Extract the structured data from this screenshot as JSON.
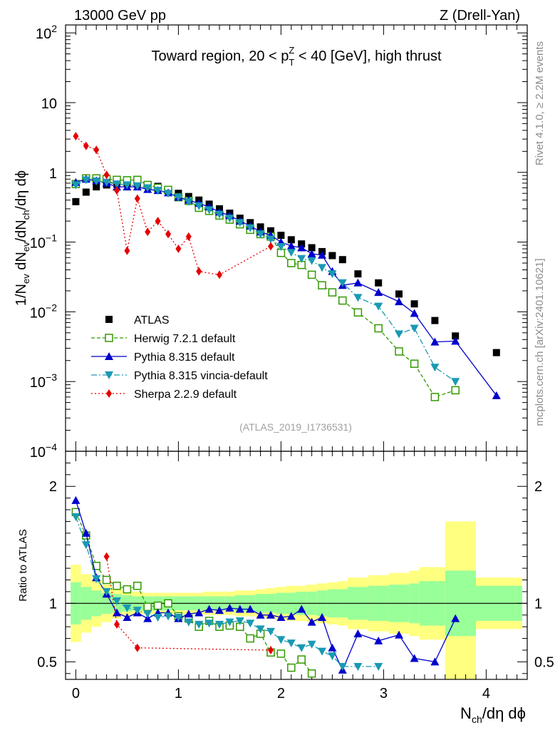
{
  "header": {
    "left": "13000 GeV pp",
    "right": "Z (Drell-Yan)"
  },
  "side": {
    "rivet": "Rivet 4.1.0, ≥ 2.2M events",
    "mcplots": "mcplots.cern.ch [arXiv:2401.10621]"
  },
  "colors": {
    "atlas": "#000000",
    "herwig": "#339900",
    "pythia": "#0000cc",
    "vincia": "#1a99b3",
    "sherpa": "#e60000",
    "band_inner": "#99ff99",
    "band_outer": "#ffff80"
  },
  "chart_data": [
    {
      "type": "scatter",
      "panel": "main",
      "title": {
        "pre": "Toward region, 20 < p",
        "sup": "Z",
        "sub": "T",
        "post": " < 40 [GeV], high thrust"
      },
      "ylabel": {
        "a": "1/N",
        "a_sub": "ev",
        "b": " dN",
        "b_sub": "ev",
        "c": "/dN",
        "c_sub": "ch",
        "d": "/dη dϕ"
      },
      "yscale": "log",
      "ylim": [
        0.0001,
        130
      ],
      "xlim": [
        -0.1,
        4.4
      ],
      "ytick_labels": [
        {
          "v": 0.0001,
          "base": "10",
          "exp": "−4"
        },
        {
          "v": 0.001,
          "base": "10",
          "exp": "−3"
        },
        {
          "v": 0.01,
          "base": "10",
          "exp": "−2"
        },
        {
          "v": 0.1,
          "base": "10",
          "exp": "−1"
        },
        {
          "v": 1,
          "base": "1",
          "exp": ""
        },
        {
          "v": 10,
          "base": "10",
          "exp": ""
        },
        {
          "v": 100,
          "base": "10",
          "exp": "2"
        }
      ],
      "watermark": "(ATLAS_2019_I1736531)",
      "legend_position": "lower-left",
      "series": [
        {
          "name": "ATLAS",
          "key": "atlas",
          "x": [
            0,
            0.1,
            0.2,
            0.3,
            0.4,
            0.5,
            0.6,
            0.7,
            0.8,
            0.9,
            1.0,
            1.1,
            1.2,
            1.3,
            1.4,
            1.5,
            1.6,
            1.7,
            1.8,
            1.9,
            2.0,
            2.1,
            2.2,
            2.3,
            2.4,
            2.5,
            2.6,
            2.75,
            2.95,
            3.15,
            3.3,
            3.5,
            3.7,
            4.1
          ],
          "y": [
            0.38,
            0.52,
            0.62,
            0.66,
            0.68,
            0.69,
            0.68,
            0.66,
            0.63,
            0.56,
            0.5,
            0.45,
            0.4,
            0.35,
            0.3,
            0.26,
            0.22,
            0.19,
            0.165,
            0.145,
            0.125,
            0.108,
            0.094,
            0.083,
            0.073,
            0.064,
            0.056,
            0.035,
            0.026,
            0.018,
            0.013,
            0.0075,
            0.0045,
            0.0026
          ]
        },
        {
          "name": "Herwig 7.2.1 default",
          "key": "herwig",
          "x": [
            0,
            0.1,
            0.2,
            0.3,
            0.4,
            0.5,
            0.6,
            0.7,
            0.8,
            0.9,
            1.0,
            1.1,
            1.2,
            1.3,
            1.4,
            1.5,
            1.6,
            1.7,
            1.8,
            1.9,
            2.0,
            2.1,
            2.2,
            2.3,
            2.4,
            2.5,
            2.6,
            2.75,
            2.95,
            3.15,
            3.3,
            3.5,
            3.7
          ],
          "y": [
            0.68,
            0.82,
            0.82,
            0.8,
            0.78,
            0.77,
            0.78,
            0.66,
            0.6,
            0.56,
            0.44,
            0.39,
            0.31,
            0.28,
            0.24,
            0.21,
            0.18,
            0.15,
            0.13,
            0.12,
            0.07,
            0.05,
            0.047,
            0.034,
            0.024,
            0.019,
            0.0145,
            0.0098,
            0.0058,
            0.0027,
            0.0018,
            0.0006,
            0.00075
          ]
        },
        {
          "name": "Pythia 8.315 default",
          "key": "pythia",
          "x": [
            0,
            0.1,
            0.2,
            0.3,
            0.4,
            0.5,
            0.6,
            0.7,
            0.8,
            0.9,
            1.0,
            1.1,
            1.2,
            1.3,
            1.4,
            1.5,
            1.6,
            1.7,
            1.8,
            1.9,
            2.0,
            2.1,
            2.2,
            2.3,
            2.4,
            2.5,
            2.6,
            2.75,
            2.95,
            3.15,
            3.3,
            3.5,
            3.7,
            4.1
          ],
          "y": [
            0.72,
            0.8,
            0.76,
            0.7,
            0.62,
            0.62,
            0.62,
            0.57,
            0.55,
            0.51,
            0.44,
            0.4,
            0.36,
            0.32,
            0.27,
            0.24,
            0.2,
            0.17,
            0.14,
            0.125,
            0.1,
            0.088,
            0.083,
            0.068,
            0.065,
            0.038,
            0.024,
            0.026,
            0.019,
            0.014,
            0.0095,
            0.0037,
            0.0038,
            0.00063
          ]
        },
        {
          "name": "Pythia 8.315 vincia-default",
          "key": "vincia",
          "x": [
            0,
            0.1,
            0.2,
            0.3,
            0.4,
            0.5,
            0.6,
            0.7,
            0.8,
            0.9,
            1.0,
            1.1,
            1.2,
            1.3,
            1.4,
            1.5,
            1.6,
            1.7,
            1.8,
            1.9,
            2.0,
            2.1,
            2.2,
            2.3,
            2.4,
            2.5,
            2.6,
            2.75,
            2.95,
            3.15,
            3.3,
            3.5,
            3.7
          ],
          "y": [
            0.66,
            0.78,
            0.75,
            0.72,
            0.68,
            0.66,
            0.64,
            0.6,
            0.55,
            0.5,
            0.44,
            0.38,
            0.33,
            0.29,
            0.25,
            0.22,
            0.19,
            0.16,
            0.13,
            0.11,
            0.086,
            0.071,
            0.058,
            0.054,
            0.043,
            0.035,
            0.026,
            0.016,
            0.012,
            0.0048,
            0.0058,
            0.0016,
            0.001
          ]
        },
        {
          "name": "Sherpa 2.2.9 default",
          "key": "sherpa",
          "x": [
            0,
            0.1,
            0.2,
            0.3,
            0.4,
            0.5,
            0.6,
            0.7,
            0.8,
            0.9,
            1.0,
            1.1,
            1.2,
            1.4,
            1.9
          ],
          "y": [
            3.3,
            2.4,
            2.1,
            0.92,
            0.55,
            0.075,
            0.42,
            0.14,
            0.2,
            0.13,
            0.08,
            0.12,
            0.038,
            0.034,
            0.087
          ]
        }
      ]
    },
    {
      "type": "scatter",
      "panel": "ratio",
      "ylabel": "Ratio to ATLAS",
      "ylim": [
        0.35,
        2.3
      ],
      "xlim": [
        -0.1,
        4.4
      ],
      "xlabel": {
        "a": "N",
        "a_sub": "ch",
        "b": "/dη dϕ"
      },
      "xtick_labels": [
        "0",
        "1",
        "2",
        "3",
        "4"
      ],
      "ytick_labels": [
        "0.5",
        "1",
        "2"
      ],
      "reference_line": 1,
      "bands": {
        "x_edges": [
          -0.05,
          0.05,
          0.15,
          0.25,
          0.35,
          0.45,
          0.55,
          0.65,
          0.75,
          0.85,
          0.95,
          1.05,
          1.15,
          1.25,
          1.35,
          1.45,
          1.55,
          1.65,
          1.75,
          1.85,
          1.95,
          2.05,
          2.15,
          2.25,
          2.35,
          2.45,
          2.55,
          2.65,
          2.85,
          3.05,
          3.25,
          3.35,
          3.6,
          3.9,
          4.35
        ],
        "inner": [
          0.18,
          0.14,
          0.11,
          0.09,
          0.08,
          0.07,
          0.06,
          0.06,
          0.06,
          0.06,
          0.06,
          0.06,
          0.06,
          0.06,
          0.06,
          0.06,
          0.07,
          0.07,
          0.08,
          0.08,
          0.09,
          0.09,
          0.1,
          0.1,
          0.11,
          0.12,
          0.12,
          0.14,
          0.15,
          0.16,
          0.17,
          0.19,
          0.28,
          0.15
        ],
        "outer": [
          0.33,
          0.25,
          0.2,
          0.16,
          0.13,
          0.11,
          0.1,
          0.09,
          0.09,
          0.09,
          0.09,
          0.09,
          0.09,
          0.1,
          0.1,
          0.1,
          0.11,
          0.11,
          0.12,
          0.13,
          0.14,
          0.15,
          0.15,
          0.16,
          0.17,
          0.18,
          0.19,
          0.22,
          0.24,
          0.26,
          0.28,
          0.31,
          0.7,
          0.22
        ]
      },
      "series": [
        {
          "name": "Herwig 7.2.1 default",
          "key": "herwig",
          "x": [
            0,
            0.1,
            0.2,
            0.3,
            0.4,
            0.5,
            0.6,
            0.7,
            0.8,
            0.9,
            1.0,
            1.1,
            1.2,
            1.3,
            1.4,
            1.5,
            1.6,
            1.7,
            1.8,
            1.9,
            2.0,
            2.1,
            2.2,
            2.3
          ],
          "y": [
            1.78,
            1.58,
            1.32,
            1.2,
            1.15,
            1.12,
            1.15,
            0.97,
            0.98,
            1.0,
            0.89,
            0.87,
            0.8,
            0.85,
            0.8,
            0.81,
            0.8,
            0.7,
            0.74,
            0.58,
            0.57,
            0.45,
            0.52,
            0.4
          ]
        },
        {
          "name": "Pythia 8.315 default",
          "key": "pythia",
          "x": [
            0,
            0.1,
            0.2,
            0.3,
            0.4,
            0.5,
            0.6,
            0.7,
            0.8,
            0.9,
            1.0,
            1.1,
            1.2,
            1.3,
            1.4,
            1.5,
            1.6,
            1.7,
            1.8,
            1.9,
            2.0,
            2.1,
            2.2,
            2.3,
            2.4,
            2.5,
            2.6,
            2.75,
            2.95,
            3.15,
            3.3,
            3.5,
            3.7
          ],
          "y": [
            1.88,
            1.6,
            1.22,
            1.08,
            0.92,
            0.88,
            0.92,
            0.87,
            0.92,
            0.92,
            0.87,
            0.91,
            0.92,
            0.95,
            0.94,
            0.96,
            0.95,
            0.95,
            0.9,
            0.9,
            0.88,
            0.89,
            0.95,
            0.84,
            0.88,
            0.62,
            0.43,
            0.74,
            0.68,
            0.73,
            0.53,
            0.5,
            0.87
          ]
        },
        {
          "name": "Pythia 8.315 vincia-default",
          "key": "vincia",
          "x": [
            0,
            0.1,
            0.2,
            0.3,
            0.4,
            0.5,
            0.6,
            0.7,
            0.8,
            0.9,
            1.0,
            1.1,
            1.2,
            1.3,
            1.4,
            1.5,
            1.6,
            1.7,
            1.8,
            1.9,
            2.0,
            2.1,
            2.2,
            2.3,
            2.4,
            2.5,
            2.6,
            2.75,
            2.95
          ],
          "y": [
            1.74,
            1.5,
            1.21,
            1.1,
            1.02,
            0.96,
            0.94,
            0.91,
            0.88,
            0.89,
            0.88,
            0.84,
            0.82,
            0.83,
            0.82,
            0.84,
            0.85,
            0.83,
            0.78,
            0.76,
            0.69,
            0.66,
            0.62,
            0.65,
            0.59,
            0.55,
            0.46,
            0.46,
            0.46
          ]
        },
        {
          "name": "Sherpa 2.2.9 default",
          "key": "sherpa",
          "x": [
            0.3,
            0.4,
            0.6,
            1.9
          ],
          "y": [
            1.4,
            0.82,
            0.62,
            0.6
          ]
        }
      ]
    }
  ]
}
